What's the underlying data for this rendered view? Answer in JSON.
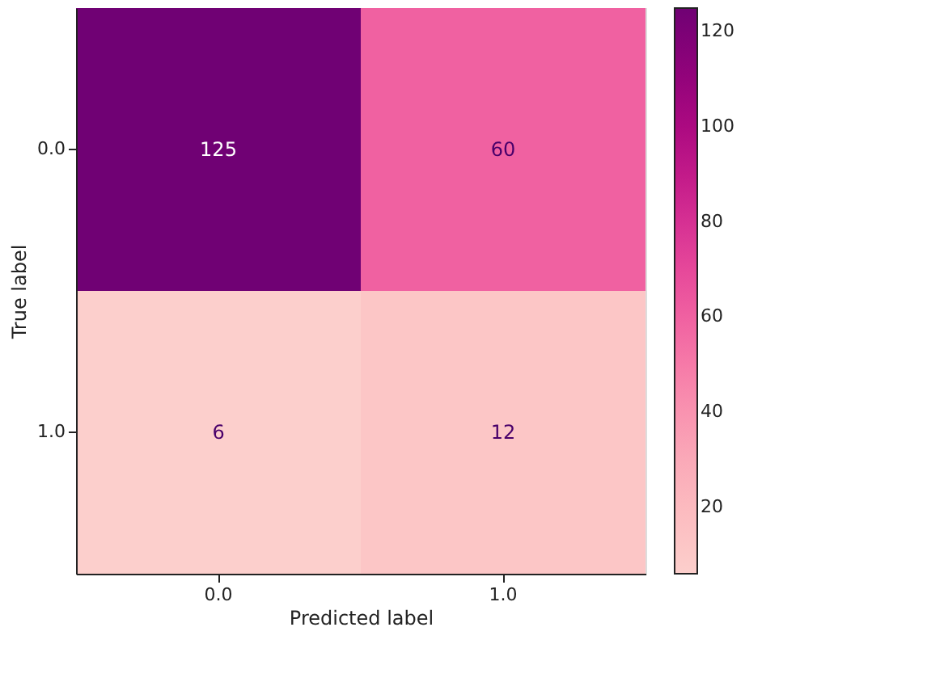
{
  "chart_data": {
    "type": "heatmap",
    "xlabel": "Predicted label",
    "ylabel": "True label",
    "categories": [
      "0.0",
      "1.0"
    ],
    "y_categories": [
      "0.0",
      "1.0"
    ],
    "cells": [
      [
        125,
        60
      ],
      [
        6,
        12
      ]
    ],
    "clim": [
      6,
      125
    ],
    "cticks": [
      20,
      40,
      60,
      80,
      100,
      120
    ],
    "data_labels": true,
    "grid": false
  }
}
